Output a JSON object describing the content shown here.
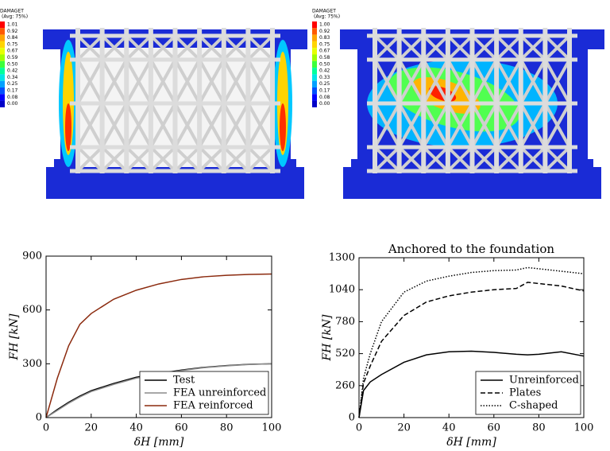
{
  "contours": [
    {
      "title": "DAMAGET",
      "subtitle": "(Avg: 75%)",
      "legend_values": [
        "1.01",
        "0.92",
        "0.84",
        "0.75",
        "0.67",
        "0.59",
        "0.50",
        "0.42",
        "0.34",
        "0.25",
        "0.17",
        "0.08",
        "0.00"
      ]
    },
    {
      "title": "DAMAGET",
      "subtitle": "(Avg: 75%)",
      "legend_values": [
        "1.00",
        "0.92",
        "0.83",
        "0.75",
        "0.67",
        "0.58",
        "0.50",
        "0.42",
        "0.33",
        "0.25",
        "0.17",
        "0.08",
        "0.00"
      ]
    }
  ],
  "chart_data": [
    {
      "type": "line",
      "xlabel": "δH [mm]",
      "ylabel": "FH [kN]",
      "x": [
        0,
        5,
        10,
        15,
        20,
        30,
        40,
        50,
        60,
        70,
        80,
        90,
        100
      ],
      "series": [
        {
          "name": "Test",
          "color": "#000000",
          "dash": "solid",
          "values": [
            0,
            45,
            85,
            120,
            150,
            190,
            225,
            245,
            265,
            280,
            290,
            297,
            300
          ]
        },
        {
          "name": "FEA unreinforced",
          "color": "#8c8c8c",
          "dash": "solid",
          "values": [
            0,
            40,
            80,
            115,
            145,
            185,
            220,
            243,
            262,
            278,
            288,
            296,
            300
          ]
        },
        {
          "name": "FEA reinforced",
          "color": "#8b2a0e",
          "dash": "solid",
          "values": [
            0,
            220,
            400,
            520,
            580,
            660,
            710,
            745,
            770,
            785,
            793,
            798,
            800
          ]
        }
      ],
      "xlim": [
        0,
        100
      ],
      "xticks": [
        0,
        20,
        40,
        60,
        80,
        100
      ],
      "ylim": [
        0,
        900
      ],
      "yticks": [
        0,
        300,
        600,
        900
      ],
      "legend": "lower right"
    },
    {
      "type": "line",
      "title": "Anchored to the foundation",
      "xlabel": "δH [mm]",
      "ylabel": "FH [kN]",
      "x": [
        0,
        2,
        5,
        10,
        20,
        30,
        40,
        50,
        60,
        70,
        75,
        80,
        90,
        100
      ],
      "series": [
        {
          "name": "Unreinforced",
          "color": "#000000",
          "dash": "solid",
          "values": [
            0,
            220,
            290,
            350,
            450,
            510,
            535,
            540,
            530,
            515,
            510,
            515,
            535,
            500
          ]
        },
        {
          "name": "Plates",
          "color": "#000000",
          "dash": "dashed",
          "values": [
            0,
            280,
            420,
            620,
            830,
            940,
            990,
            1020,
            1040,
            1050,
            1100,
            1090,
            1070,
            1030
          ]
        },
        {
          "name": "C-shaped",
          "color": "#000000",
          "dash": "dotted",
          "values": [
            0,
            320,
            520,
            780,
            1020,
            1110,
            1150,
            1180,
            1195,
            1200,
            1220,
            1210,
            1190,
            1170
          ]
        }
      ],
      "xlim": [
        0,
        100
      ],
      "xticks": [
        0,
        20,
        40,
        60,
        80,
        100
      ],
      "ylim": [
        0,
        1300
      ],
      "yticks": [
        0,
        260,
        520,
        780,
        1040,
        1300
      ],
      "legend": "lower right"
    }
  ]
}
